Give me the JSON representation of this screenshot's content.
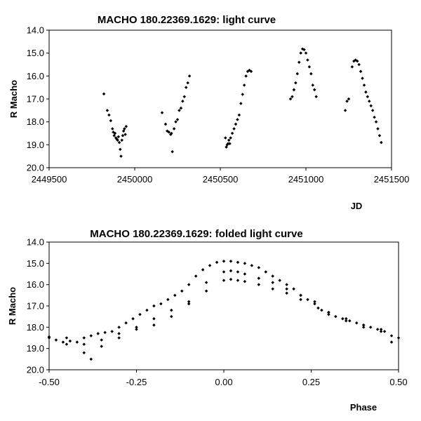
{
  "chart_data": [
    {
      "type": "scatter",
      "title": "MACHO 180.22369.1629: light curve",
      "xlabel": "JD",
      "ylabel": "R Macho",
      "xlim": [
        2449500,
        2451500
      ],
      "ylim": [
        14.0,
        20.0
      ],
      "y_inverted": true,
      "xticks": [
        "2449500",
        "2450000",
        "2450500",
        "2451000",
        "2451500"
      ],
      "yticks": [
        "14.0",
        "15.0",
        "16.0",
        "17.0",
        "18.0",
        "19.0",
        "20.0"
      ],
      "grid": false,
      "series": [
        {
          "points": [
            [
              2449820,
              16.78
            ],
            [
              2449840,
              17.5
            ],
            [
              2449850,
              17.7
            ],
            [
              2449860,
              17.95
            ],
            [
              2449870,
              18.3
            ],
            [
              2449875,
              18.45
            ],
            [
              2449880,
              18.6
            ],
            [
              2449885,
              18.5
            ],
            [
              2449890,
              18.7
            ],
            [
              2449895,
              18.75
            ],
            [
              2449900,
              18.8
            ],
            [
              2449905,
              18.65
            ],
            [
              2449910,
              18.9
            ],
            [
              2449915,
              19.2
            ],
            [
              2449920,
              19.5
            ],
            [
              2449925,
              18.8
            ],
            [
              2449930,
              18.6
            ],
            [
              2449935,
              18.4
            ],
            [
              2449940,
              18.3
            ],
            [
              2449945,
              18.55
            ],
            [
              2449950,
              18.2
            ],
            [
              2450160,
              17.6
            ],
            [
              2450180,
              18.1
            ],
            [
              2450190,
              18.4
            ],
            [
              2450200,
              18.45
            ],
            [
              2450210,
              18.55
            ],
            [
              2450215,
              18.5
            ],
            [
              2450220,
              19.3
            ],
            [
              2450230,
              18.3
            ],
            [
              2450240,
              18.0
            ],
            [
              2450250,
              17.9
            ],
            [
              2450260,
              17.5
            ],
            [
              2450270,
              17.4
            ],
            [
              2450280,
              17.1
            ],
            [
              2450290,
              16.9
            ],
            [
              2450300,
              16.5
            ],
            [
              2450310,
              16.3
            ],
            [
              2450320,
              16.0
            ],
            [
              2450530,
              18.7
            ],
            [
              2450535,
              19.1
            ],
            [
              2450540,
              19.0
            ],
            [
              2450545,
              18.95
            ],
            [
              2450550,
              18.8
            ],
            [
              2450555,
              18.95
            ],
            [
              2450560,
              18.7
            ],
            [
              2450570,
              18.5
            ],
            [
              2450580,
              18.3
            ],
            [
              2450590,
              18.1
            ],
            [
              2450600,
              17.9
            ],
            [
              2450610,
              17.7
            ],
            [
              2450620,
              17.2
            ],
            [
              2450630,
              16.8
            ],
            [
              2450640,
              16.4
            ],
            [
              2450650,
              16.0
            ],
            [
              2450660,
              15.8
            ],
            [
              2450670,
              15.75
            ],
            [
              2450680,
              15.8
            ],
            [
              2450910,
              17.0
            ],
            [
              2450920,
              16.9
            ],
            [
              2450930,
              16.6
            ],
            [
              2450940,
              16.3
            ],
            [
              2450950,
              15.9
            ],
            [
              2450960,
              15.4
            ],
            [
              2450970,
              15.0
            ],
            [
              2450980,
              14.82
            ],
            [
              2450990,
              14.85
            ],
            [
              2451000,
              15.0
            ],
            [
              2451010,
              15.3
            ],
            [
              2451020,
              15.6
            ],
            [
              2451030,
              15.9
            ],
            [
              2451040,
              16.4
            ],
            [
              2451050,
              16.6
            ],
            [
              2451060,
              16.9
            ],
            [
              2451230,
              17.5
            ],
            [
              2451240,
              17.1
            ],
            [
              2451250,
              17.0
            ],
            [
              2451270,
              15.6
            ],
            [
              2451280,
              15.35
            ],
            [
              2451290,
              15.3
            ],
            [
              2451300,
              15.35
            ],
            [
              2451310,
              15.5
            ],
            [
              2451320,
              15.8
            ],
            [
              2451330,
              16.1
            ],
            [
              2451340,
              16.4
            ],
            [
              2451350,
              16.7
            ],
            [
              2451360,
              16.9
            ],
            [
              2451370,
              17.1
            ],
            [
              2451380,
              17.3
            ],
            [
              2451390,
              17.5
            ],
            [
              2451400,
              17.8
            ],
            [
              2451410,
              18.0
            ],
            [
              2451420,
              18.3
            ],
            [
              2451430,
              18.6
            ],
            [
              2451440,
              18.9
            ]
          ]
        }
      ]
    },
    {
      "type": "scatter",
      "title": "MACHO 180.22369.1629: folded light curve",
      "xlabel": "Phase",
      "ylabel": "R Macho",
      "xlim": [
        -0.5,
        0.5
      ],
      "ylim": [
        14.0,
        20.0
      ],
      "y_inverted": true,
      "xticks": [
        "-0.50",
        "-0.25",
        "0.00",
        "0.25",
        "0.50"
      ],
      "yticks": [
        "14.0",
        "15.0",
        "16.0",
        "17.0",
        "18.0",
        "19.0",
        "20.0"
      ],
      "grid": false,
      "series": [
        {
          "points": [
            [
              -0.5,
              18.5
            ],
            [
              -0.48,
              18.6
            ],
            [
              -0.46,
              18.7
            ],
            [
              -0.44,
              18.65
            ],
            [
              -0.42,
              18.7
            ],
            [
              -0.4,
              18.5
            ],
            [
              -0.38,
              18.4
            ],
            [
              -0.36,
              18.3
            ],
            [
              -0.34,
              18.25
            ],
            [
              -0.32,
              18.2
            ],
            [
              -0.3,
              18.0
            ],
            [
              -0.28,
              17.8
            ],
            [
              -0.26,
              17.6
            ],
            [
              -0.24,
              17.4
            ],
            [
              -0.22,
              17.2
            ],
            [
              -0.2,
              17.0
            ],
            [
              -0.18,
              16.9
            ],
            [
              -0.16,
              16.7
            ],
            [
              -0.14,
              16.5
            ],
            [
              -0.12,
              16.3
            ],
            [
              -0.1,
              16.0
            ],
            [
              -0.08,
              15.6
            ],
            [
              -0.06,
              15.3
            ],
            [
              -0.04,
              15.1
            ],
            [
              -0.02,
              14.95
            ],
            [
              0.0,
              14.9
            ],
            [
              0.02,
              14.9
            ],
            [
              0.04,
              14.95
            ],
            [
              0.06,
              15.0
            ],
            [
              0.08,
              15.1
            ],
            [
              0.1,
              15.2
            ],
            [
              0.12,
              15.4
            ],
            [
              0.14,
              15.6
            ],
            [
              0.16,
              15.8
            ],
            [
              0.18,
              16.0
            ],
            [
              0.2,
              16.2
            ],
            [
              0.22,
              16.5
            ],
            [
              0.24,
              16.7
            ],
            [
              0.26,
              16.9
            ],
            [
              0.28,
              17.2
            ],
            [
              0.3,
              17.4
            ],
            [
              0.32,
              17.5
            ],
            [
              0.34,
              17.6
            ],
            [
              0.36,
              17.7
            ],
            [
              0.38,
              17.8
            ],
            [
              0.4,
              17.9
            ],
            [
              0.42,
              18.0
            ],
            [
              0.44,
              18.1
            ],
            [
              0.46,
              18.2
            ],
            [
              0.48,
              18.4
            ],
            [
              0.5,
              18.5
            ],
            [
              -0.5,
              18.45
            ],
            [
              -0.45,
              18.8
            ],
            [
              -0.4,
              19.2
            ],
            [
              -0.38,
              19.5
            ],
            [
              -0.35,
              18.9
            ],
            [
              -0.3,
              18.5
            ],
            [
              -0.25,
              18.1
            ],
            [
              -0.2,
              17.9
            ],
            [
              -0.15,
              17.5
            ],
            [
              -0.1,
              16.9
            ],
            [
              -0.05,
              15.9
            ],
            [
              0.0,
              15.4
            ],
            [
              0.02,
              15.35
            ],
            [
              0.04,
              15.4
            ],
            [
              0.06,
              15.5
            ],
            [
              0.1,
              15.7
            ],
            [
              0.14,
              15.9
            ],
            [
              0.18,
              16.2
            ],
            [
              0.22,
              16.5
            ],
            [
              0.26,
              16.8
            ],
            [
              0.3,
              17.3
            ],
            [
              0.35,
              17.7
            ],
            [
              0.4,
              18.0
            ],
            [
              0.45,
              18.2
            ],
            [
              0.48,
              18.7
            ],
            [
              -0.45,
              18.5
            ],
            [
              -0.4,
              18.8
            ],
            [
              -0.35,
              18.6
            ],
            [
              -0.3,
              18.3
            ],
            [
              -0.25,
              18.0
            ],
            [
              -0.2,
              17.6
            ],
            [
              -0.15,
              17.2
            ],
            [
              -0.1,
              16.8
            ],
            [
              -0.05,
              16.3
            ],
            [
              0.0,
              15.8
            ],
            [
              0.02,
              15.75
            ],
            [
              0.04,
              15.8
            ],
            [
              0.06,
              15.85
            ],
            [
              0.1,
              16.0
            ],
            [
              0.14,
              16.2
            ],
            [
              0.18,
              16.4
            ],
            [
              0.22,
              16.7
            ],
            [
              0.27,
              17.1
            ],
            [
              0.3,
              17.3
            ],
            [
              0.35,
              17.6
            ],
            [
              0.4,
              17.9
            ],
            [
              0.45,
              18.1
            ]
          ]
        }
      ]
    }
  ]
}
